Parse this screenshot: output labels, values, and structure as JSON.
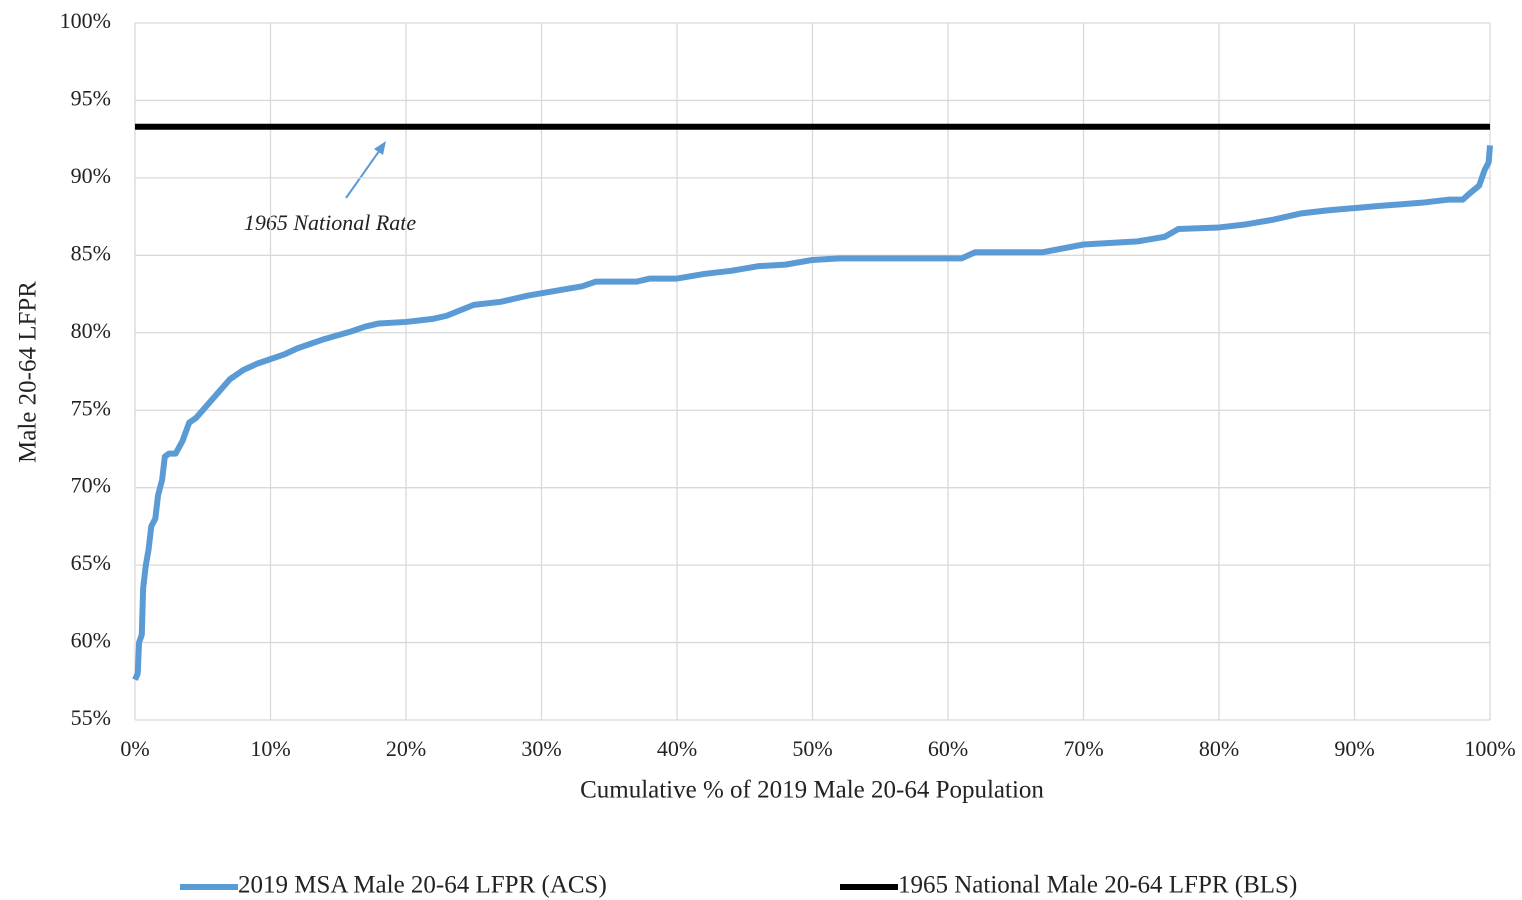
{
  "chart_data": {
    "type": "line",
    "xlabel": "Cumulative % of 2019 Male 20-64 Population",
    "ylabel": "Male 20-64 LFPR",
    "annotation": "1965 National Rate",
    "xlim": [
      0,
      100
    ],
    "ylim": [
      55,
      100
    ],
    "grid": true,
    "legend": "bottom",
    "xticks": [
      {
        "value": 0,
        "label": "0%"
      },
      {
        "value": 10,
        "label": "10%"
      },
      {
        "value": 20,
        "label": "20%"
      },
      {
        "value": 30,
        "label": "30%"
      },
      {
        "value": 40,
        "label": "40%"
      },
      {
        "value": 50,
        "label": "50%"
      },
      {
        "value": 60,
        "label": "60%"
      },
      {
        "value": 70,
        "label": "70%"
      },
      {
        "value": 80,
        "label": "80%"
      },
      {
        "value": 90,
        "label": "90%"
      },
      {
        "value": 100,
        "label": "100%"
      }
    ],
    "yticks": [
      {
        "value": 55,
        "label": "55%"
      },
      {
        "value": 60,
        "label": "60%"
      },
      {
        "value": 65,
        "label": "65%"
      },
      {
        "value": 70,
        "label": "70%"
      },
      {
        "value": 75,
        "label": "75%"
      },
      {
        "value": 80,
        "label": "80%"
      },
      {
        "value": 85,
        "label": "85%"
      },
      {
        "value": 90,
        "label": "90%"
      },
      {
        "value": 95,
        "label": "95%"
      },
      {
        "value": 100,
        "label": "100%"
      }
    ],
    "series": [
      {
        "name": "2019 MSA Male 20-64 LFPR (ACS)",
        "color": "#5b9bd5",
        "width": 6,
        "x": [
          0,
          0.2,
          0.3,
          0.5,
          0.6,
          0.8,
          1.0,
          1.2,
          1.5,
          1.7,
          2.0,
          2.2,
          2.5,
          3.0,
          3.5,
          4.0,
          4.5,
          5.0,
          6.0,
          7.0,
          8.0,
          9.0,
          10.0,
          11.0,
          12.0,
          14.0,
          16.0,
          17.0,
          18.0,
          20.0,
          22.0,
          23.0,
          25.0,
          27.0,
          29.0,
          31.0,
          33.0,
          34.0,
          37.0,
          38.0,
          40.0,
          42.0,
          44.0,
          46.0,
          48.0,
          50.0,
          52.0,
          61.0,
          62.0,
          67.0,
          70.0,
          74.0,
          76.0,
          77.0,
          80.0,
          82.0,
          84.0,
          86.0,
          88.0,
          92.0,
          95.0,
          97.0,
          98.0,
          98.5,
          99.2,
          99.6,
          99.9,
          100
        ],
        "values": [
          57.6,
          58,
          60,
          60.5,
          63.5,
          65,
          66,
          67.5,
          68,
          69.5,
          70.5,
          72,
          72.2,
          72.2,
          73,
          74.2,
          74.5,
          75,
          76,
          77,
          77.6,
          78,
          78.3,
          78.6,
          79,
          79.6,
          80.1,
          80.4,
          80.6,
          80.7,
          80.9,
          81.1,
          81.8,
          82,
          82.4,
          82.7,
          83,
          83.3,
          83.3,
          83.5,
          83.5,
          83.8,
          84,
          84.3,
          84.4,
          84.7,
          84.8,
          84.8,
          85.2,
          85.2,
          85.7,
          85.9,
          86.2,
          86.7,
          86.8,
          87,
          87.3,
          87.7,
          87.9,
          88.2,
          88.4,
          88.6,
          88.6,
          89,
          89.5,
          90.5,
          91,
          92.1
        ]
      },
      {
        "name": "1965 National Male 20-64 LFPR (BLS)",
        "color": "#000000",
        "width": 6,
        "x": [
          0,
          100
        ],
        "values": [
          93.3,
          93.3
        ]
      }
    ]
  }
}
